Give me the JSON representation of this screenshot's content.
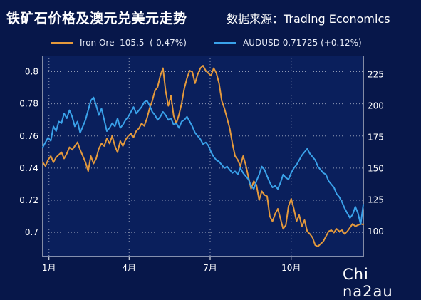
{
  "header": {
    "title": "铁矿石价格及澳元兑美元走势",
    "source": "数据来源：Trading Economics"
  },
  "legend": [
    {
      "label": "Iron Ore  105.5  (-0.47%)",
      "color": "#e59a3c"
    },
    {
      "label": "AUDUSD 0.71725 (+0.12%)",
      "color": "#3aa2ea"
    }
  ],
  "watermark": "Chi na2au",
  "chart_data": {
    "type": "line",
    "x": [
      0,
      3,
      6,
      9,
      12,
      15,
      18,
      21,
      24,
      27,
      30,
      33,
      36,
      39,
      42,
      45,
      48,
      51,
      54,
      57,
      60,
      63,
      66,
      69,
      72,
      75,
      78,
      81,
      84,
      87,
      90,
      93,
      96,
      99,
      102,
      105,
      108,
      111,
      114,
      117,
      120,
      123,
      126,
      129,
      132,
      135,
      138,
      141,
      144,
      147,
      150,
      153,
      156,
      159,
      162,
      165,
      168,
      171,
      174,
      177,
      180,
      183,
      186,
      189,
      192,
      195,
      198,
      201,
      204,
      207,
      210,
      213,
      216,
      219,
      222,
      225,
      228,
      231,
      234,
      237,
      240,
      243,
      246,
      249,
      252,
      255,
      258,
      261,
      264,
      267,
      270,
      273,
      276,
      279,
      282,
      285,
      288,
      291,
      294,
      297,
      300,
      303,
      306,
      309,
      312,
      315,
      318,
      321,
      324,
      327,
      330,
      333,
      336,
      339,
      342,
      345,
      348,
      351,
      354,
      357,
      360
    ],
    "xticks": [
      {
        "label": "1月",
        "x": 7
      },
      {
        "label": "4月",
        "x": 97
      },
      {
        "label": "7月",
        "x": 188
      },
      {
        "label": "10月",
        "x": 279
      }
    ],
    "xlim": [
      0,
      360
    ],
    "y_left": {
      "ylim": [
        0.685,
        0.81
      ],
      "ticks": [
        0.7,
        0.72,
        0.74,
        0.76,
        0.78,
        0.8
      ],
      "tick_labels": [
        "0.7",
        "0.72",
        "0.74",
        "0.76",
        "0.78",
        "0.8"
      ]
    },
    "y_right": {
      "ylim": [
        80,
        240
      ],
      "ticks": [
        100,
        125,
        150,
        175,
        200,
        225
      ],
      "tick_labels": [
        "100",
        "125",
        "150",
        "175",
        "200",
        "225"
      ]
    },
    "grid": true,
    "series": [
      {
        "name": "Iron Ore  105.5  (-0.47%)",
        "axis": "right",
        "color": "#e59a3c",
        "values": [
          155,
          152,
          157,
          160,
          155,
          159,
          161,
          163,
          158,
          162,
          167,
          165,
          168,
          171,
          165,
          160,
          155,
          148,
          160,
          154,
          158,
          166,
          170,
          168,
          174,
          170,
          176,
          168,
          163,
          172,
          168,
          173,
          176,
          178,
          175,
          180,
          182,
          186,
          184,
          190,
          198,
          204,
          212,
          215,
          224,
          230,
          212,
          200,
          208,
          192,
          186,
          193,
          202,
          214,
          222,
          228,
          227,
          218,
          225,
          230,
          232,
          228,
          226,
          224,
          230,
          226,
          218,
          204,
          198,
          190,
          182,
          170,
          160,
          157,
          152,
          160,
          153,
          143,
          134,
          140,
          137,
          125,
          132,
          129,
          128,
          112,
          108,
          114,
          118,
          110,
          102,
          105,
          120,
          126,
          118,
          108,
          113,
          104,
          109,
          100,
          98,
          95,
          89,
          88,
          90,
          92,
          96,
          100,
          101,
          99,
          102,
          100,
          101,
          98,
          100,
          103,
          106,
          104,
          105,
          106,
          105.5
        ]
      },
      {
        "name": "AUDUSD 0.71725 (+0.12%)",
        "axis": "left",
        "color": "#3aa2ea",
        "values": [
          0.753,
          0.756,
          0.759,
          0.757,
          0.766,
          0.763,
          0.769,
          0.768,
          0.774,
          0.771,
          0.776,
          0.772,
          0.766,
          0.769,
          0.762,
          0.766,
          0.77,
          0.776,
          0.782,
          0.784,
          0.779,
          0.773,
          0.777,
          0.77,
          0.763,
          0.765,
          0.768,
          0.766,
          0.771,
          0.765,
          0.767,
          0.77,
          0.772,
          0.775,
          0.778,
          0.774,
          0.776,
          0.778,
          0.781,
          0.782,
          0.779,
          0.775,
          0.773,
          0.77,
          0.772,
          0.775,
          0.773,
          0.77,
          0.771,
          0.767,
          0.768,
          0.765,
          0.769,
          0.77,
          0.772,
          0.769,
          0.766,
          0.762,
          0.76,
          0.758,
          0.755,
          0.756,
          0.754,
          0.75,
          0.747,
          0.745,
          0.744,
          0.742,
          0.74,
          0.741,
          0.739,
          0.737,
          0.738,
          0.736,
          0.74,
          0.737,
          0.735,
          0.733,
          0.729,
          0.727,
          0.732,
          0.736,
          0.741,
          0.739,
          0.735,
          0.731,
          0.728,
          0.729,
          0.727,
          0.731,
          0.736,
          0.734,
          0.733,
          0.737,
          0.74,
          0.742,
          0.745,
          0.748,
          0.75,
          0.752,
          0.749,
          0.747,
          0.745,
          0.741,
          0.739,
          0.737,
          0.736,
          0.732,
          0.73,
          0.728,
          0.724,
          0.722,
          0.719,
          0.715,
          0.712,
          0.709,
          0.711,
          0.716,
          0.712,
          0.705,
          0.71725
        ]
      }
    ]
  }
}
